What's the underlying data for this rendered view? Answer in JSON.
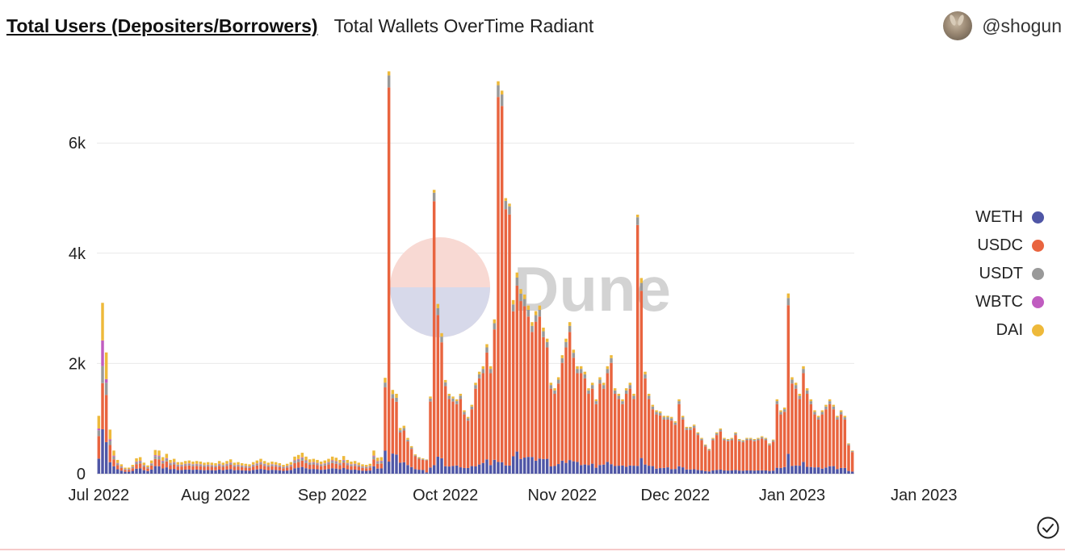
{
  "header": {
    "title": "Total Users (Depositers/Borrowers)",
    "subtitle": "Total Wallets OverTime Radiant",
    "user": "@shogun"
  },
  "watermark": {
    "text": "Dune"
  },
  "colors": {
    "WETH": "#4f56a6",
    "USDC": "#e9643f",
    "USDT": "#999999",
    "WBTC": "#c05cc0",
    "DAI": "#eeb93a",
    "grid": "#e9e9e9"
  },
  "legend": [
    {
      "label": "WETH",
      "color": "#4f56a6"
    },
    {
      "label": "USDC",
      "color": "#e9643f"
    },
    {
      "label": "USDT",
      "color": "#999999"
    },
    {
      "label": "WBTC",
      "color": "#c05cc0"
    },
    {
      "label": "DAI",
      "color": "#eeb93a"
    }
  ],
  "chart_data": {
    "type": "bar",
    "stacked": true,
    "title": "Total Wallets OverTime Radiant",
    "xlabel": "",
    "ylabel": "",
    "ylim": [
      0,
      7200
    ],
    "yticks": [
      {
        "v": 0,
        "label": "0"
      },
      {
        "v": 2000,
        "label": "2k"
      },
      {
        "v": 4000,
        "label": "4k"
      },
      {
        "v": 6000,
        "label": "6k"
      }
    ],
    "xticks": [
      {
        "i": 0,
        "label": "Jul 2022"
      },
      {
        "i": 31,
        "label": "Aug 2022"
      },
      {
        "i": 62,
        "label": "Sep 2022"
      },
      {
        "i": 92,
        "label": "Oct 2022"
      },
      {
        "i": 123,
        "label": "Nov 2022"
      },
      {
        "i": 153,
        "label": "Dec 2022"
      },
      {
        "i": 184,
        "label": "Jan 2023"
      },
      {
        "i": 219,
        "label": "Jan 2023"
      }
    ],
    "grid": true,
    "legend_position": "right",
    "series_names": [
      "WETH",
      "USDC",
      "USDT",
      "WBTC",
      "DAI"
    ],
    "totals": [
      1050,
      3100,
      2200,
      800,
      420,
      250,
      170,
      110,
      110,
      160,
      280,
      300,
      200,
      150,
      240,
      430,
      420,
      300,
      360,
      250,
      270,
      210,
      210,
      230,
      240,
      220,
      230,
      220,
      200,
      210,
      200,
      190,
      230,
      200,
      230,
      260,
      200,
      210,
      190,
      180,
      170,
      210,
      240,
      270,
      230,
      200,
      220,
      210,
      190,
      160,
      180,
      210,
      310,
      340,
      380,
      310,
      260,
      270,
      250,
      220,
      240,
      270,
      310,
      290,
      250,
      320,
      250,
      220,
      230,
      200,
      170,
      160,
      180,
      420,
      290,
      300,
      1740,
      7300,
      1520,
      1450,
      830,
      870,
      650,
      500,
      350,
      300,
      280,
      260,
      1400,
      5150,
      3080,
      2550,
      1700,
      1450,
      1400,
      1350,
      1450,
      1150,
      1030,
      1250,
      1650,
      1850,
      1950,
      2350,
      1950,
      2800,
      7120,
      6950,
      5000,
      4900,
      3150,
      3650,
      3350,
      3250,
      3050,
      2750,
      2950,
      3050,
      2650,
      2450,
      1650,
      1550,
      1750,
      2150,
      2450,
      2750,
      2250,
      1950,
      1950,
      1850,
      1550,
      1650,
      1350,
      1750,
      1650,
      1950,
      2150,
      1550,
      1450,
      1350,
      1550,
      1650,
      1450,
      4700,
      3550,
      1850,
      1450,
      1250,
      1150,
      1130,
      1050,
      1050,
      1030,
      950,
      1350,
      1050,
      850,
      850,
      890,
      750,
      650,
      530,
      450,
      650,
      750,
      820,
      650,
      630,
      650,
      750,
      630,
      610,
      650,
      650,
      630,
      650,
      680,
      650,
      550,
      620,
      1350,
      1150,
      1200,
      3270,
      1750,
      1650,
      1450,
      1950,
      1550,
      1350,
      1150,
      1050,
      1150,
      1250,
      1350,
      1250,
      1050,
      1150,
      1050,
      550,
      420
    ],
    "weth_share_note": "segment values derived from totals by the drawing script"
  }
}
